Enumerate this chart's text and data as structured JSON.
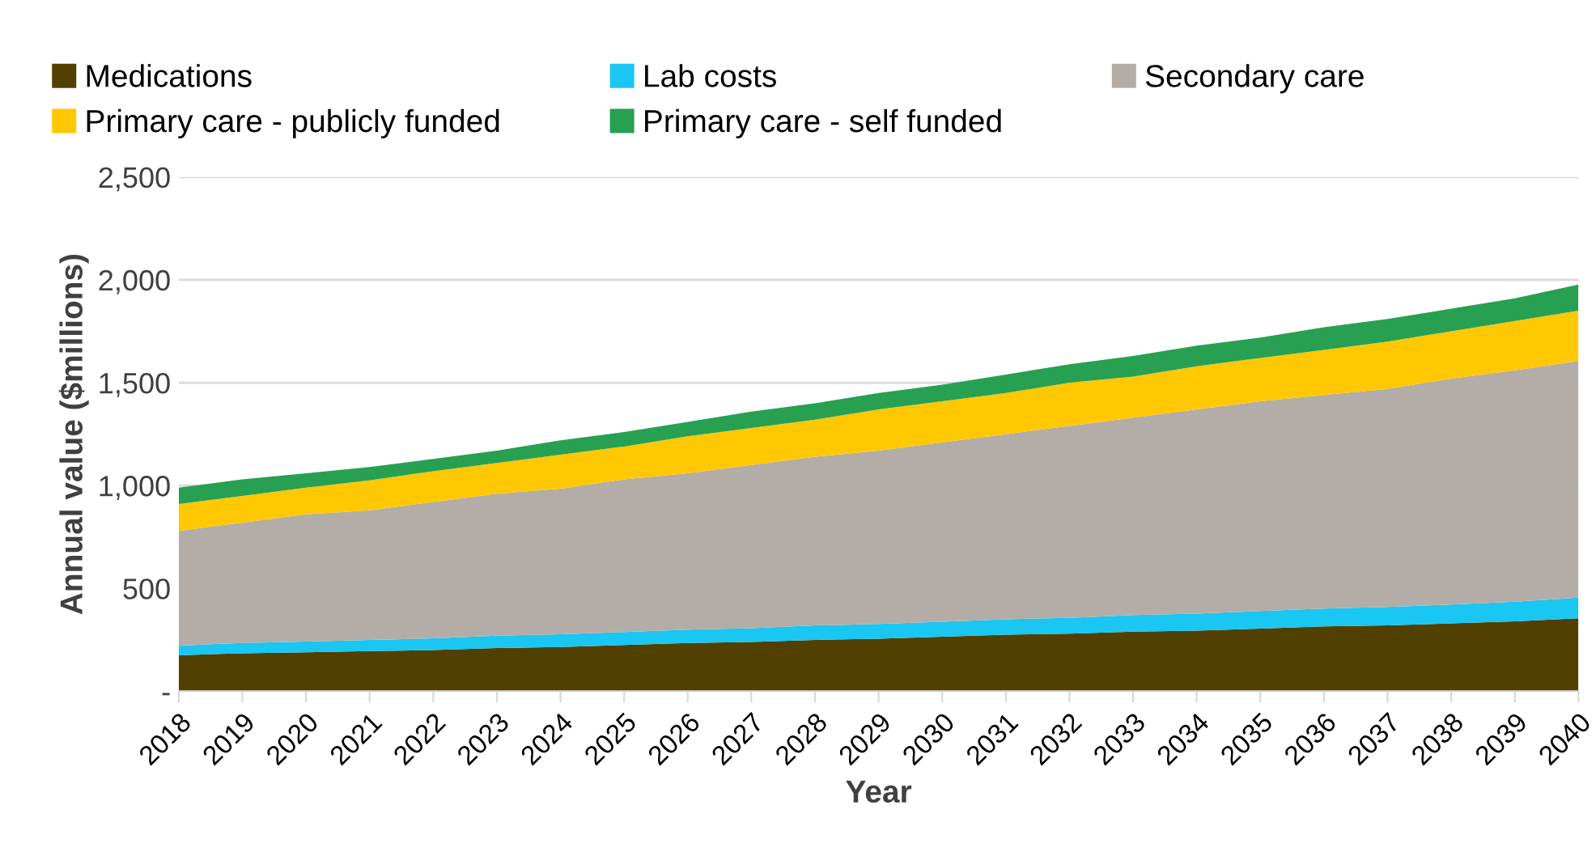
{
  "chart_data": {
    "type": "area",
    "stacked": true,
    "xlabel": "Year",
    "ylabel": "Annual value ($millions)",
    "categories": [
      "2018",
      "2019",
      "2020",
      "2021",
      "2022",
      "2023",
      "2024",
      "2025",
      "2026",
      "2027",
      "2028",
      "2029",
      "2030",
      "2031",
      "2032",
      "2033",
      "2034",
      "2035",
      "2036",
      "2037",
      "2038",
      "2039",
      "2040"
    ],
    "series": [
      {
        "name": "Medications",
        "color": "#524000",
        "values": [
          175,
          185,
          190,
          195,
          200,
          210,
          215,
          225,
          235,
          240,
          250,
          255,
          265,
          275,
          280,
          290,
          295,
          305,
          315,
          320,
          330,
          340,
          355
        ]
      },
      {
        "name": "Lab costs",
        "color": "#1ac6f2",
        "values": [
          47,
          50,
          52,
          55,
          57,
          60,
          62,
          63,
          65,
          67,
          70,
          72,
          73,
          75,
          77,
          80,
          82,
          85,
          87,
          90,
          92,
          95,
          100
        ]
      },
      {
        "name": "Secondary care",
        "color": "#b4ada7",
        "values": [
          558,
          585,
          618,
          630,
          663,
          690,
          708,
          742,
          760,
          793,
          820,
          843,
          872,
          900,
          933,
          960,
          993,
          1020,
          1038,
          1060,
          1098,
          1125,
          1150
        ]
      },
      {
        "name": "Primary care - publicly funded",
        "color": "#ffc800",
        "values": [
          130,
          130,
          130,
          145,
          150,
          150,
          165,
          160,
          180,
          180,
          180,
          200,
          200,
          200,
          210,
          200,
          210,
          210,
          220,
          230,
          230,
          240,
          245
        ]
      },
      {
        "name": "Primary care - self funded",
        "color": "#27a052",
        "values": [
          80,
          80,
          70,
          65,
          60,
          60,
          70,
          70,
          70,
          80,
          80,
          80,
          80,
          90,
          90,
          100,
          100,
          100,
          110,
          110,
          110,
          110,
          127
        ]
      }
    ],
    "ylim": [
      0,
      2500
    ],
    "yticks": [
      {
        "value": 0,
        "label": "-"
      },
      {
        "value": 500,
        "label": "500"
      },
      {
        "value": 1000,
        "label": "1,000"
      },
      {
        "value": 1500,
        "label": "1,500"
      },
      {
        "value": 2000,
        "label": "2,000"
      },
      {
        "value": 2500,
        "label": "2,500"
      }
    ],
    "grid": "y",
    "legend": "top"
  }
}
